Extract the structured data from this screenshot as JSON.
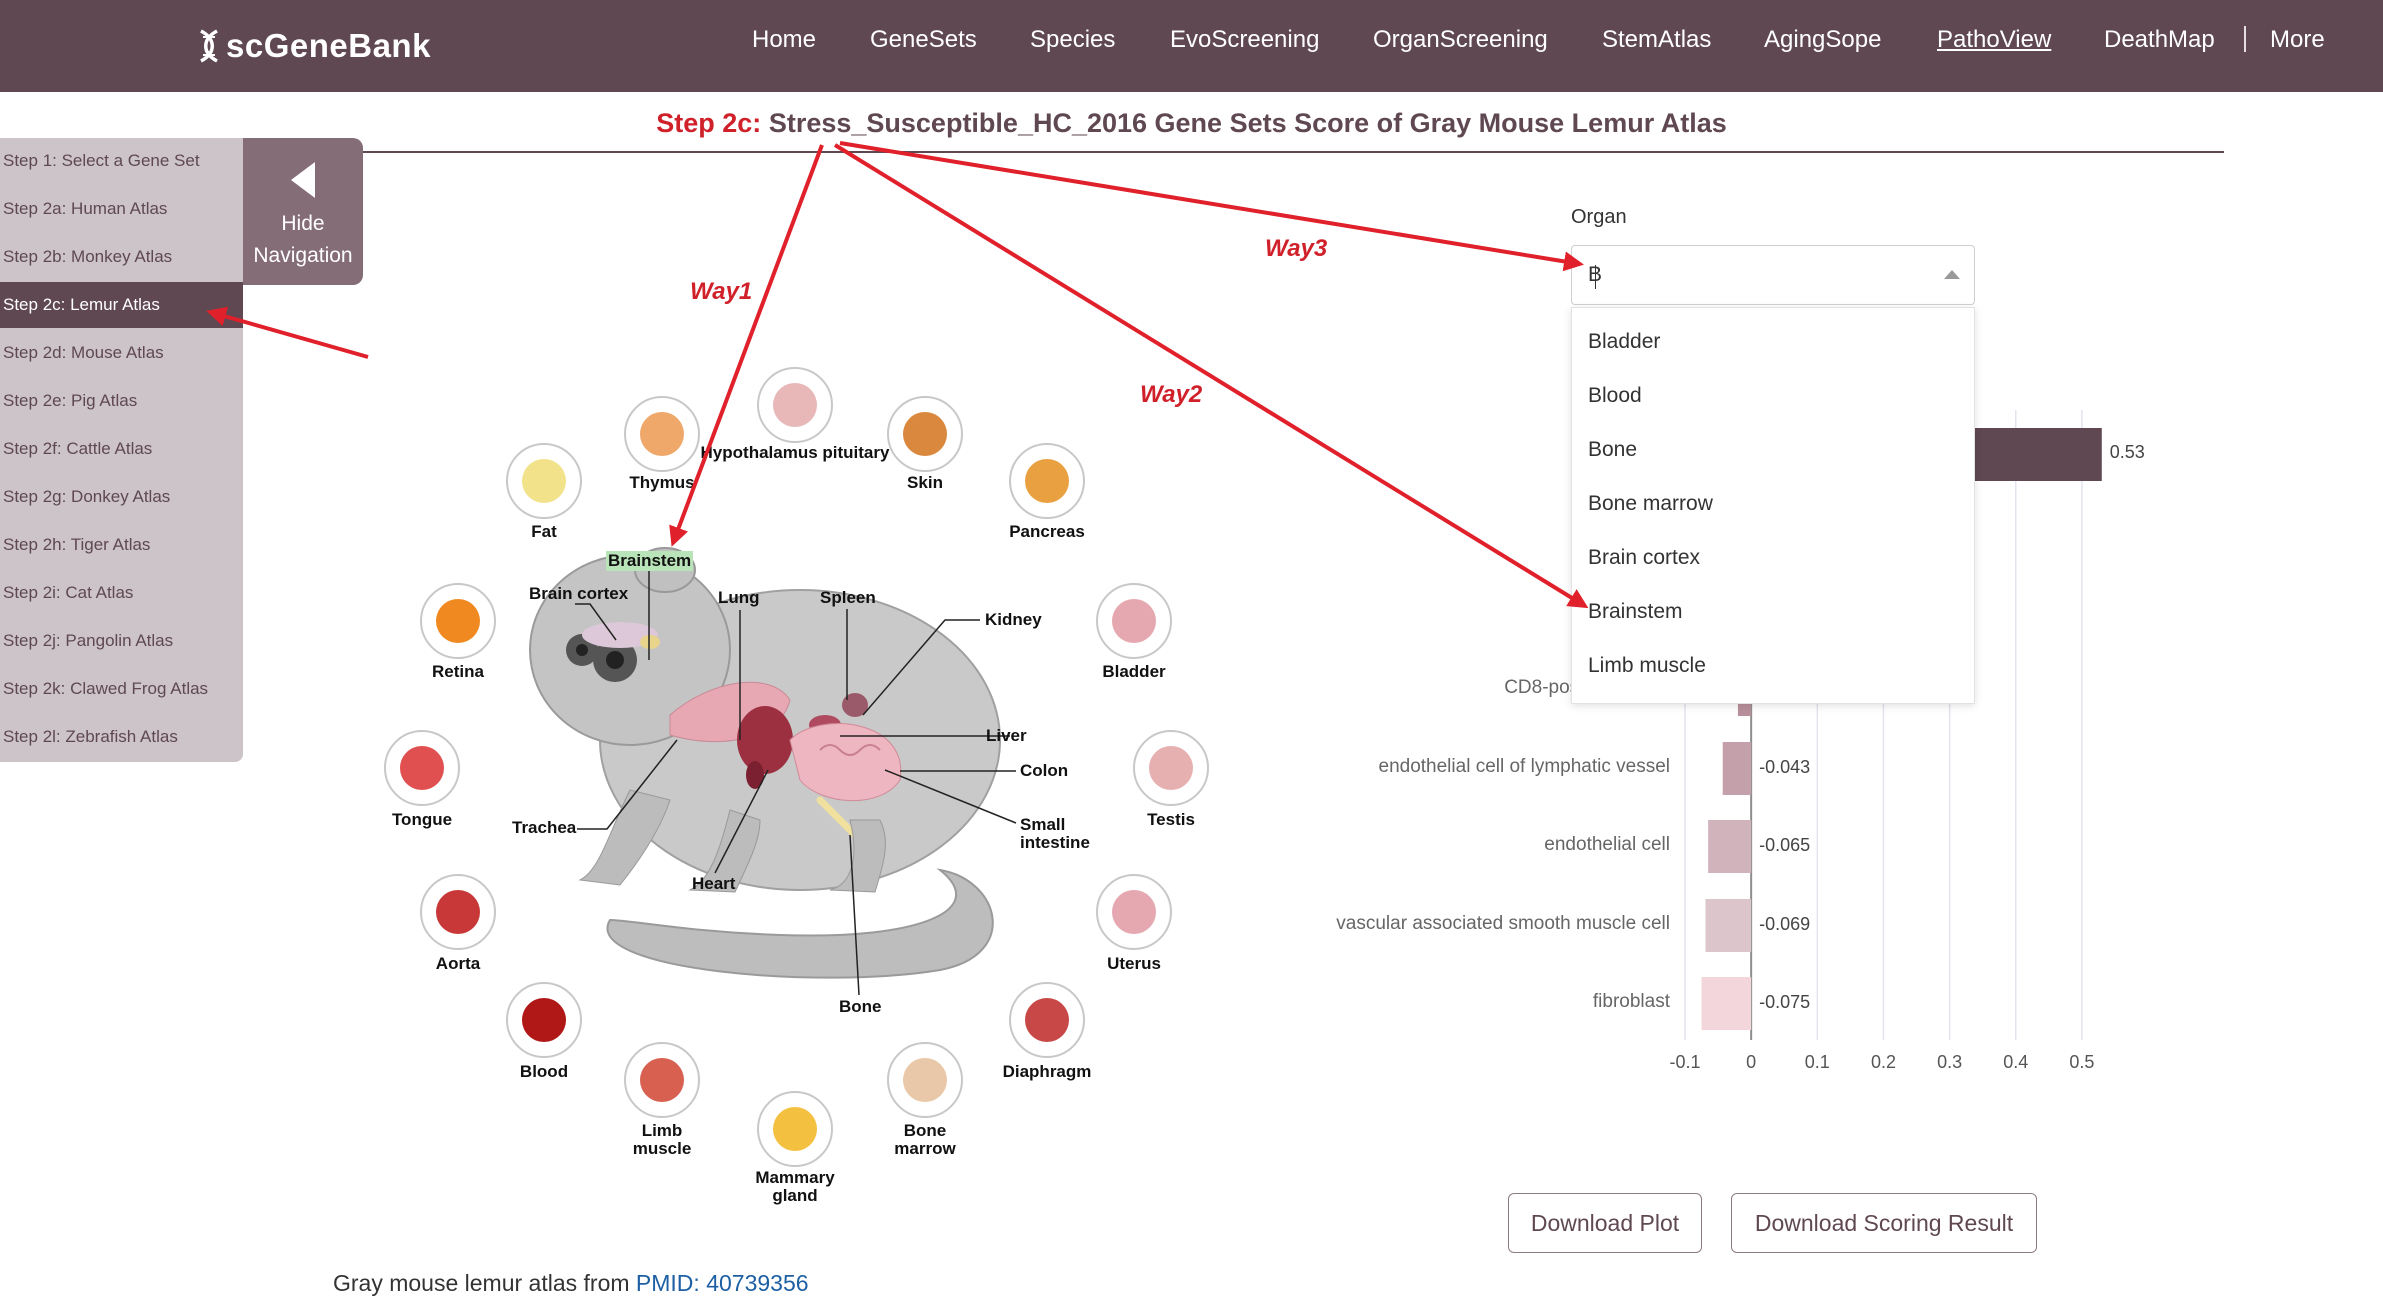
{
  "header": {
    "logo_text": "scGeneBank",
    "nav": [
      {
        "label": "Home",
        "active": false
      },
      {
        "label": "GeneSets",
        "active": false
      },
      {
        "label": "Species",
        "active": false
      },
      {
        "label": "EvoScreening",
        "active": false
      },
      {
        "label": "OrganScreening",
        "active": false
      },
      {
        "label": "StemAtlas",
        "active": false
      },
      {
        "label": "AgingSope",
        "active": false
      },
      {
        "label": "PathoView",
        "active": true
      },
      {
        "label": "DeathMap",
        "active": false
      },
      {
        "label": "More",
        "active": false
      }
    ]
  },
  "title": {
    "prefix": "Step 2c:",
    "text": "Stress_Susceptible_HC_2016 Gene Sets Score of Gray Mouse Lemur Atlas"
  },
  "sidenav": {
    "items": [
      {
        "label": "Step 1: Select a Gene Set",
        "active": false
      },
      {
        "label": "Step 2a: Human Atlas",
        "active": false
      },
      {
        "label": "Step 2b: Monkey Atlas",
        "active": false
      },
      {
        "label": "Step 2c: Lemur Atlas",
        "active": true
      },
      {
        "label": "Step 2d: Mouse Atlas",
        "active": false
      },
      {
        "label": "Step 2e: Pig Atlas",
        "active": false
      },
      {
        "label": "Step 2f: Cattle Atlas",
        "active": false
      },
      {
        "label": "Step 2g: Donkey Atlas",
        "active": false
      },
      {
        "label": "Step 2h: Tiger Atlas",
        "active": false
      },
      {
        "label": "Step 2i: Cat Atlas",
        "active": false
      },
      {
        "label": "Step 2j: Pangolin Atlas",
        "active": false
      },
      {
        "label": "Step 2k: Clawed Frog Atlas",
        "active": false
      },
      {
        "label": "Step 2l: Zebrafish Atlas",
        "active": false
      }
    ],
    "hide_line1": "Hide",
    "hide_line2": "Navigation"
  },
  "diagram": {
    "organs": {
      "fat": "Fat",
      "thymus": "Thymus",
      "hypothalamus": "Hypothalamus pituitary",
      "skin": "Skin",
      "pancreas": "Pancreas",
      "retina": "Retina",
      "bladder": "Bladder",
      "tongue": "Tongue",
      "testis": "Testis",
      "aorta": "Aorta",
      "uterus": "Uterus",
      "blood": "Blood",
      "diaphragm": "Diaphragm",
      "limb_muscle": "Limb muscle",
      "bone_marrow": "Bone marrow",
      "mammary": "Mammary gland"
    },
    "callouts": {
      "brainstem": "Brainstem",
      "brain_cortex": "Brain cortex",
      "lung": "Lung",
      "spleen": "Spleen",
      "kidney": "Kidney",
      "liver": "Liver",
      "colon": "Colon",
      "small_intestine": "Small intestine",
      "trachea": "Trachea",
      "heart": "Heart",
      "bone": "Bone"
    },
    "organ_colors": {
      "fat": "#f2e38a",
      "thymus": "#f0a86a",
      "hypothalamus": "#e8b8b8",
      "skin": "#d9883e",
      "pancreas": "#e9a040",
      "retina": "#f08a20",
      "bladder": "#e6a8b0",
      "tongue": "#e05050",
      "testis": "#e7b0b0",
      "aorta": "#c83838",
      "uterus": "#e6a8b0",
      "blood": "#b01818",
      "diaphragm": "#c84848",
      "limb_muscle": "#d86050",
      "bone_marrow": "#e8c8a8",
      "mammary": "#f3c040"
    }
  },
  "annotations": {
    "way1": "Way1",
    "way2": "Way2",
    "way3": "Way3"
  },
  "organ_select": {
    "label": "Organ",
    "value": "B",
    "options": [
      "Bladder",
      "Blood",
      "Bone",
      "Bone marrow",
      "Brain cortex",
      "Brainstem",
      "Limb muscle"
    ]
  },
  "chart_data": {
    "type": "bar",
    "orientation": "horizontal",
    "categories": [
      "CD8-positive, alpha",
      "endothelial cell of lymphatic vessel",
      "endothelial cell",
      "vascular associated smooth muscle cell",
      "fibroblast"
    ],
    "values": [
      -0.02,
      -0.043,
      -0.065,
      -0.069,
      -0.075
    ],
    "value_labels": [
      "",
      "-0.043",
      "-0.065",
      "-0.069",
      "-0.075"
    ],
    "top_bar_value": 0.53,
    "top_bar_label": "0.53",
    "xlim": [
      -0.1,
      0.55
    ],
    "xticks": [
      -0.1,
      0,
      0.1,
      0.2,
      0.3,
      0.4,
      0.5
    ],
    "xtick_labels": [
      "-0.1",
      "0",
      "0.1",
      "0.2",
      "0.3",
      "0.4",
      "0.5"
    ],
    "grid": true,
    "colors": {
      "top_bar": "#5f4852",
      "bars": [
        "#b8909c",
        "#c4a0ab",
        "#d0b3bb",
        "#dcc6cb",
        "#f3d5dc"
      ]
    }
  },
  "buttons": {
    "download_plot": "Download Plot",
    "download_result": "Download Scoring Result"
  },
  "footer": {
    "text": "Gray mouse lemur atlas from ",
    "link": "PMID: 40739356"
  },
  "colors": {
    "brand": "#5f4852",
    "accent_red": "#d0202a",
    "link": "#1d5fa3"
  }
}
